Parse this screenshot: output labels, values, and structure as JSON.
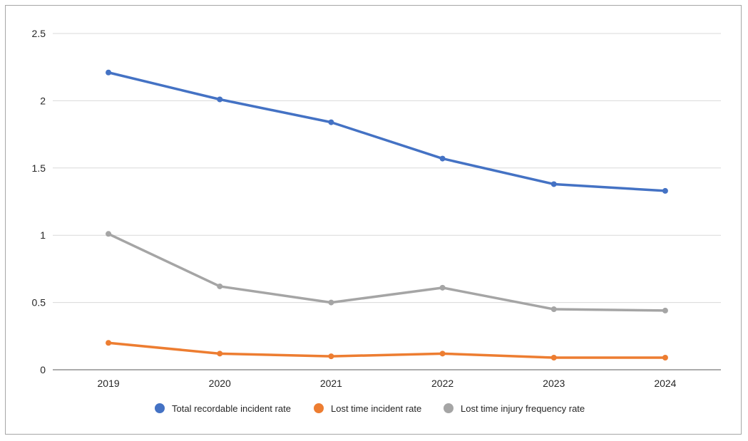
{
  "chart_data": {
    "type": "line",
    "title": "",
    "xlabel": "",
    "ylabel": "",
    "categories": [
      "2019",
      "2020",
      "2021",
      "2022",
      "2023",
      "2024"
    ],
    "ylim": [
      0,
      2.5
    ],
    "yticks": [
      0,
      0.5,
      1,
      1.5,
      2,
      2.5
    ],
    "ytick_labels": [
      "0",
      "0.5",
      "1",
      "1.5",
      "2",
      "2.5"
    ],
    "grid": true,
    "legend_position": "bottom",
    "series": [
      {
        "name": "Total recordable incident rate",
        "color": "#4472c4",
        "values": [
          2.21,
          2.01,
          1.84,
          1.57,
          1.38,
          1.33
        ]
      },
      {
        "name": "Lost time incident rate",
        "color": "#ed7d31",
        "values": [
          0.2,
          0.12,
          0.1,
          0.12,
          0.09,
          0.09
        ]
      },
      {
        "name": "Lost time injury frequency rate",
        "color": "#a5a5a5",
        "values": [
          1.01,
          0.62,
          0.5,
          0.61,
          0.45,
          0.44
        ]
      }
    ]
  }
}
